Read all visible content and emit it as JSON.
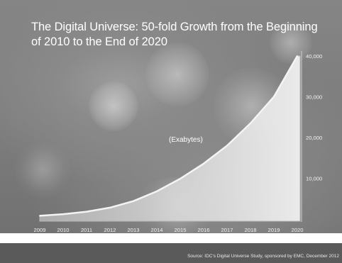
{
  "title": "The Digital Universe: 50-fold Growth from the Beginning of 2010 to the End of 2020",
  "footer": {
    "source": "Source: IDC's Digital Universe Study, sponsored by EMC, December 2012"
  },
  "chart_data": {
    "type": "area",
    "title": "The Digital Universe: 50-fold Growth from the Beginning of 2010 to the End of 2020",
    "annotation": "(Exabytes)",
    "xlabel": "",
    "ylabel": "",
    "x": [
      "2009",
      "2010",
      "2011",
      "2012",
      "2013",
      "2014",
      "2015",
      "2016",
      "2017",
      "2018",
      "2019",
      "2020"
    ],
    "values": [
      800,
      1200,
      1800,
      2800,
      4400,
      6800,
      9900,
      13600,
      18000,
      23500,
      30000,
      40000
    ],
    "y_ticks": [
      "10,000",
      "20,000",
      "30,000",
      "40,000"
    ],
    "y_tick_values": [
      10000,
      20000,
      30000,
      40000
    ],
    "ylim": [
      0,
      42000
    ],
    "grid": false,
    "y_axis_side": "right",
    "colors": {
      "fill": "#dedede",
      "edge": "#b8b8b8",
      "text": "#ffffff"
    }
  }
}
